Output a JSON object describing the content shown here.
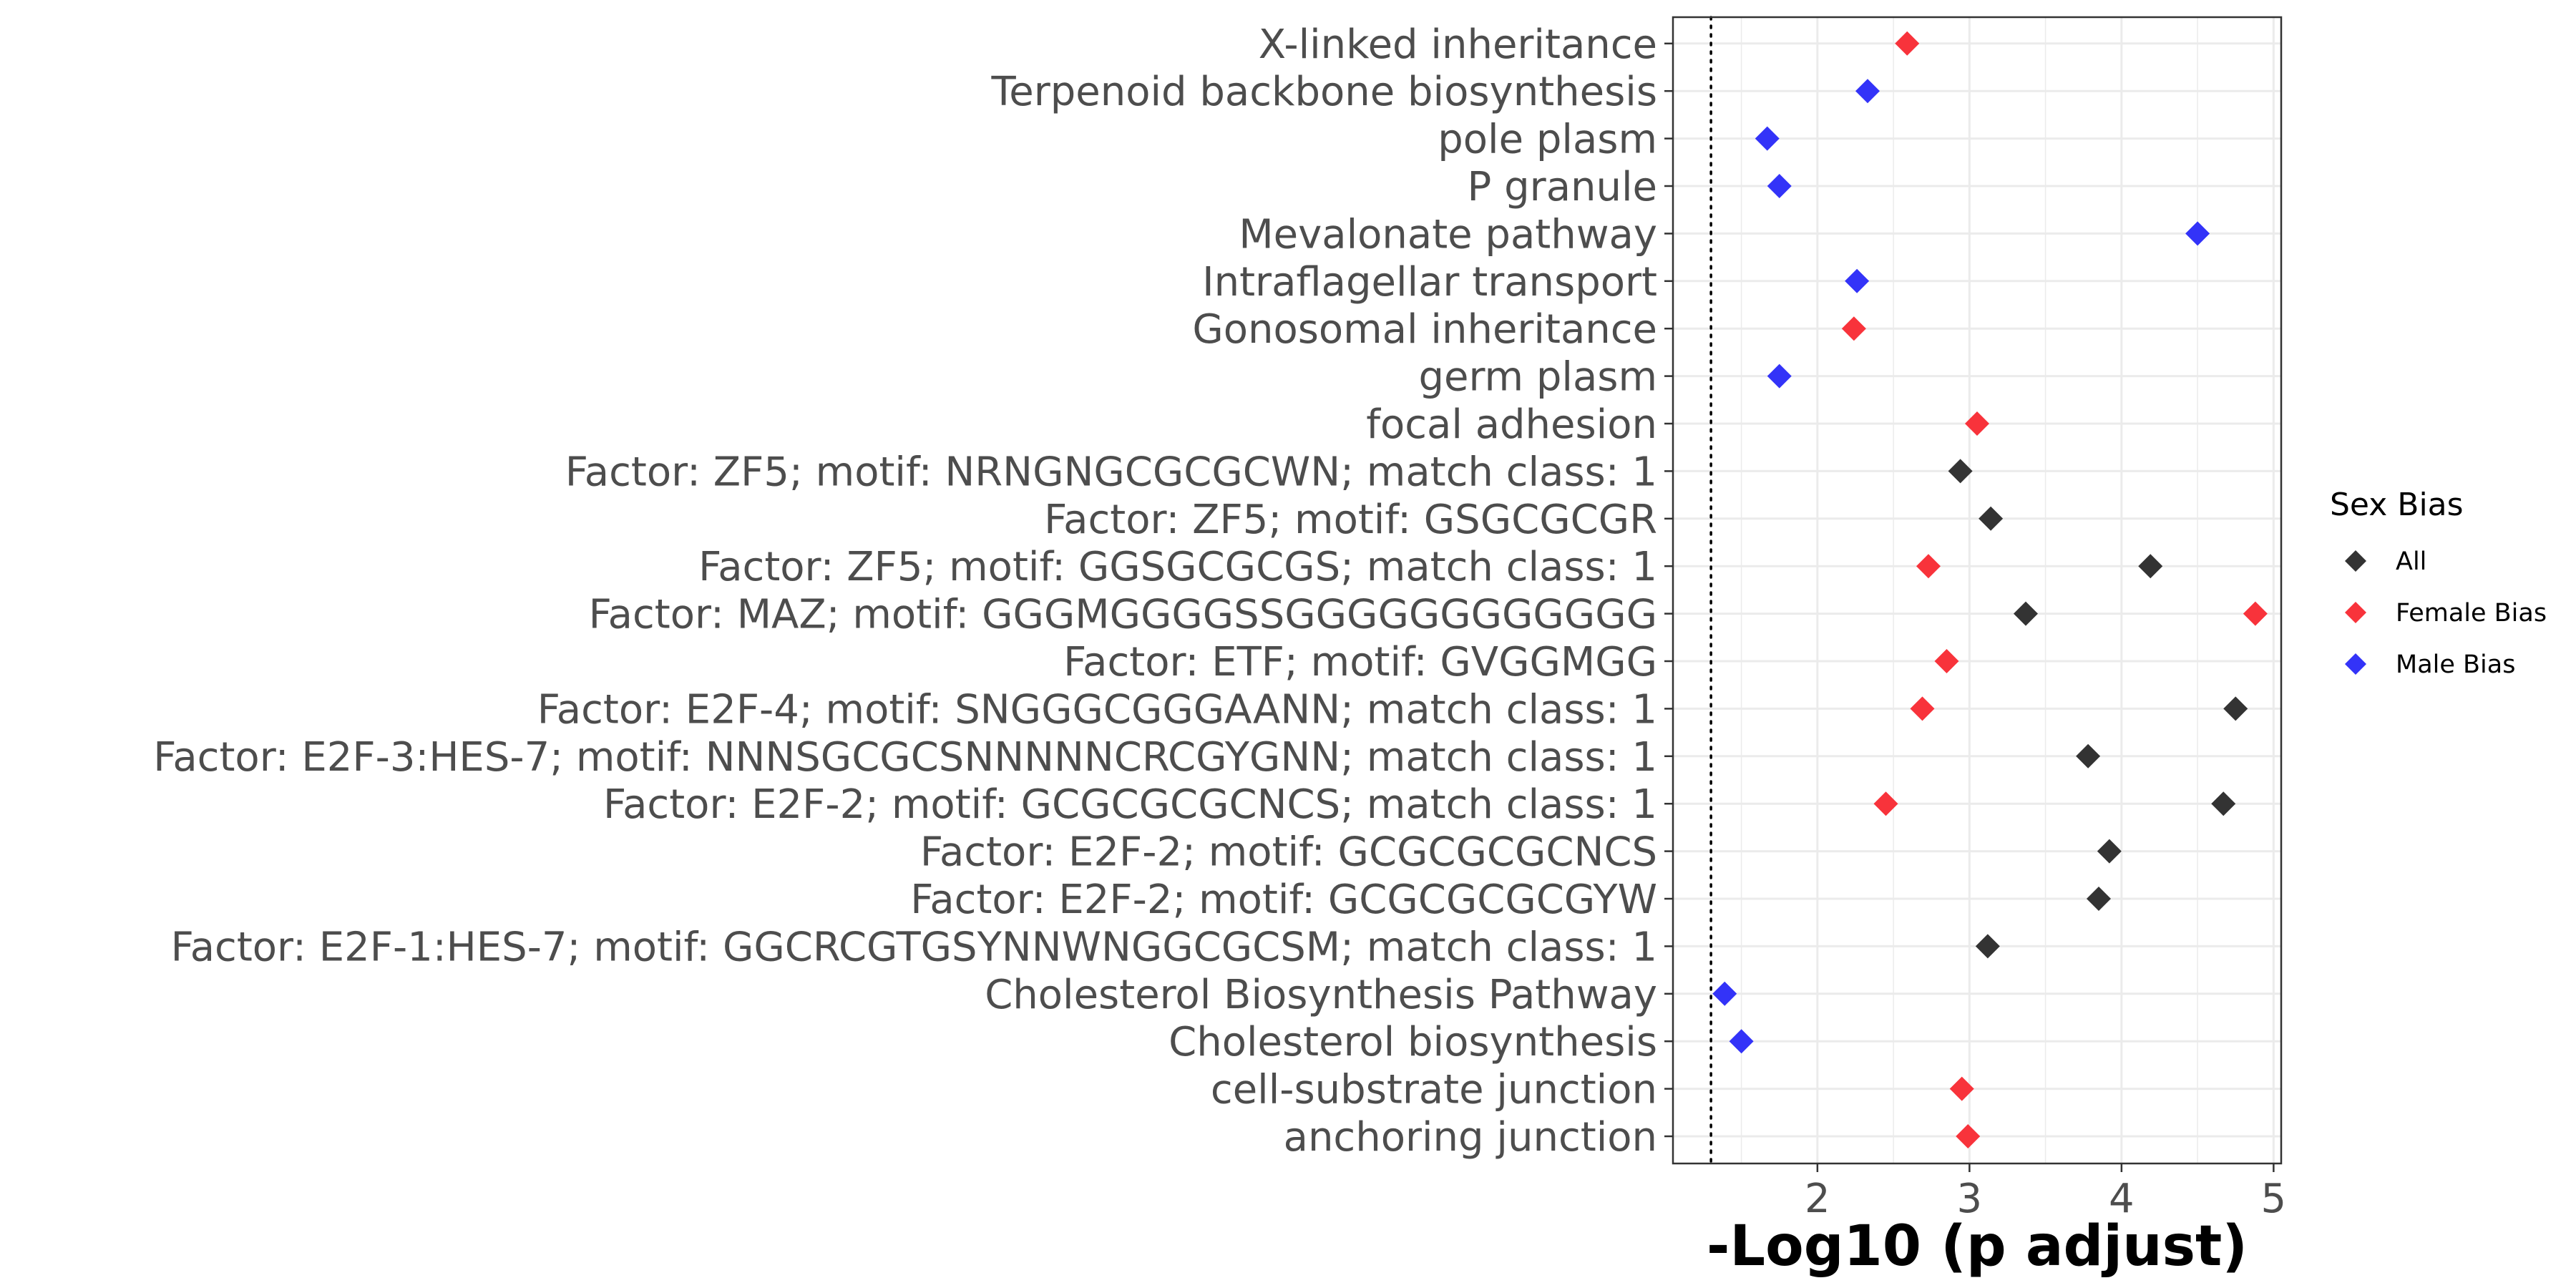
{
  "chart_data": {
    "type": "scatter",
    "xlabel": "-Log10 (p adjust)",
    "ylabel": "",
    "xlim": [
      1.05,
      5.05
    ],
    "x_ticks": [
      2,
      3,
      4,
      5
    ],
    "threshold_line": 1.3,
    "categories": [
      "anchoring junction",
      "cell-substrate junction",
      "Cholesterol biosynthesis",
      "Cholesterol Biosynthesis Pathway",
      "Factor: E2F-1:HES-7; motif: GGCRCGTGSYNNWNGGCGCSM; match class: 1",
      "Factor: E2F-2; motif: GCGCGCGCGYW",
      "Factor: E2F-2; motif: GCGCGCGCNCS",
      "Factor: E2F-2; motif: GCGCGCGCNCS; match class: 1",
      "Factor: E2F-3:HES-7; motif: NNNSGCGCSNNNNNCRCGYGNN; match class: 1",
      "Factor: E2F-4; motif: SNGGGCGGGAANN; match class: 1",
      "Factor: ETF; motif: GVGGMGG",
      "Factor: MAZ; motif: GGGMGGGGSSGGGGGGGGGGGG",
      "Factor: ZF5; motif: GGSGCGCGS; match class: 1",
      "Factor: ZF5; motif: GSGCGCGR",
      "Factor: ZF5; motif: NRNGNGCGCGCWN; match class: 1",
      "focal adhesion",
      "germ plasm",
      "Gonosomal inheritance",
      "Intraflagellar transport",
      "Mevalonate pathway",
      "P granule",
      "pole plasm",
      "Terpenoid backbone biosynthesis",
      "X-linked inheritance"
    ],
    "series": [
      {
        "name": "All",
        "color": "#333333",
        "points": [
          {
            "category": "Factor: E2F-1:HES-7; motif: GGCRCGTGSYNNWNGGCGCSM; match class: 1",
            "x": 3.12
          },
          {
            "category": "Factor: E2F-2; motif: GCGCGCGCGYW",
            "x": 3.85
          },
          {
            "category": "Factor: E2F-2; motif: GCGCGCGCNCS",
            "x": 3.92
          },
          {
            "category": "Factor: E2F-2; motif: GCGCGCGCNCS; match class: 1",
            "x": 4.67
          },
          {
            "category": "Factor: E2F-3:HES-7; motif: NNNSGCGCSNNNNNCRCGYGNN; match class: 1",
            "x": 3.78
          },
          {
            "category": "Factor: E2F-4; motif: SNGGGCGGGAANN; match class: 1",
            "x": 4.75
          },
          {
            "category": "Factor: MAZ; motif: GGGMGGGGSSGGGGGGGGGGGG",
            "x": 3.37
          },
          {
            "category": "Factor: ZF5; motif: GGSGCGCGS; match class: 1",
            "x": 4.19
          },
          {
            "category": "Factor: ZF5; motif: GSGCGCGR",
            "x": 3.14
          },
          {
            "category": "Factor: ZF5; motif: NRNGNGCGCGCWN; match class: 1",
            "x": 2.94
          }
        ]
      },
      {
        "name": "Female Bias",
        "color": "#f8333b",
        "points": [
          {
            "category": "anchoring junction",
            "x": 2.99
          },
          {
            "category": "cell-substrate junction",
            "x": 2.95
          },
          {
            "category": "Factor: E2F-2; motif: GCGCGCGCNCS; match class: 1",
            "x": 2.45
          },
          {
            "category": "Factor: E2F-4; motif: SNGGGCGGGAANN; match class: 1",
            "x": 2.69
          },
          {
            "category": "Factor: ETF; motif: GVGGMGG",
            "x": 2.85
          },
          {
            "category": "Factor: MAZ; motif: GGGMGGGGSSGGGGGGGGGGGG",
            "x": 4.88
          },
          {
            "category": "Factor: ZF5; motif: GGSGCGCGS; match class: 1",
            "x": 2.73
          },
          {
            "category": "focal adhesion",
            "x": 3.05
          },
          {
            "category": "Gonosomal inheritance",
            "x": 2.24
          },
          {
            "category": "X-linked inheritance",
            "x": 2.59
          }
        ]
      },
      {
        "name": "Male Bias",
        "color": "#3333f8",
        "points": [
          {
            "category": "Cholesterol biosynthesis",
            "x": 1.5
          },
          {
            "category": "Cholesterol Biosynthesis Pathway",
            "x": 1.39
          },
          {
            "category": "germ plasm",
            "x": 1.75
          },
          {
            "category": "Intraflagellar transport",
            "x": 2.26
          },
          {
            "category": "Mevalonate pathway",
            "x": 4.5
          },
          {
            "category": "P granule",
            "x": 1.75
          },
          {
            "category": "pole plasm",
            "x": 1.67
          },
          {
            "category": "Terpenoid backbone biosynthesis",
            "x": 2.33
          }
        ]
      }
    ],
    "legend": {
      "title": "Sex Bias",
      "position": "right",
      "entries": [
        "All",
        "Female Bias",
        "Male Bias"
      ]
    },
    "grid": true
  }
}
